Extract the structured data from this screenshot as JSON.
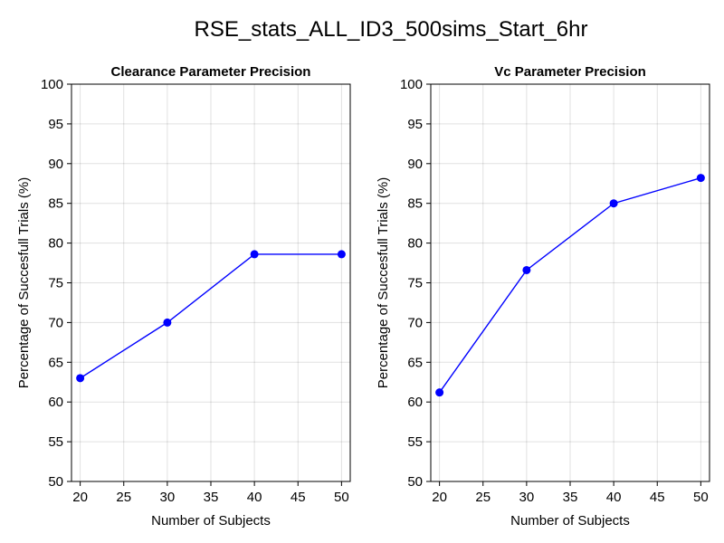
{
  "figure_title": "RSE_stats_ALL_ID3_500sims_Start_6hr",
  "chart_data": [
    {
      "type": "line",
      "title": "Clearance Parameter Precision",
      "xlabel": "Number of Subjects",
      "ylabel": "Percentage of Succesfull Trials (%)",
      "xlim": [
        19,
        51
      ],
      "ylim": [
        50,
        100
      ],
      "xticks": [
        20,
        25,
        30,
        35,
        40,
        45,
        50
      ],
      "yticks": [
        50,
        55,
        60,
        65,
        70,
        75,
        80,
        85,
        90,
        95,
        100
      ],
      "grid": true,
      "color": "#0000ff",
      "x": [
        20,
        30,
        40,
        50
      ],
      "y": [
        63.0,
        70.0,
        78.6,
        78.6
      ]
    },
    {
      "type": "line",
      "title": "Vc Parameter Precision",
      "xlabel": "Number of Subjects",
      "ylabel": "Percentage of Succesfull Trials (%)",
      "xlim": [
        19,
        51
      ],
      "ylim": [
        50,
        100
      ],
      "xticks": [
        20,
        25,
        30,
        35,
        40,
        45,
        50
      ],
      "yticks": [
        50,
        55,
        60,
        65,
        70,
        75,
        80,
        85,
        90,
        95,
        100
      ],
      "grid": true,
      "color": "#0000ff",
      "x": [
        20,
        30,
        40,
        50
      ],
      "y": [
        61.2,
        76.6,
        85.0,
        88.2
      ]
    }
  ]
}
